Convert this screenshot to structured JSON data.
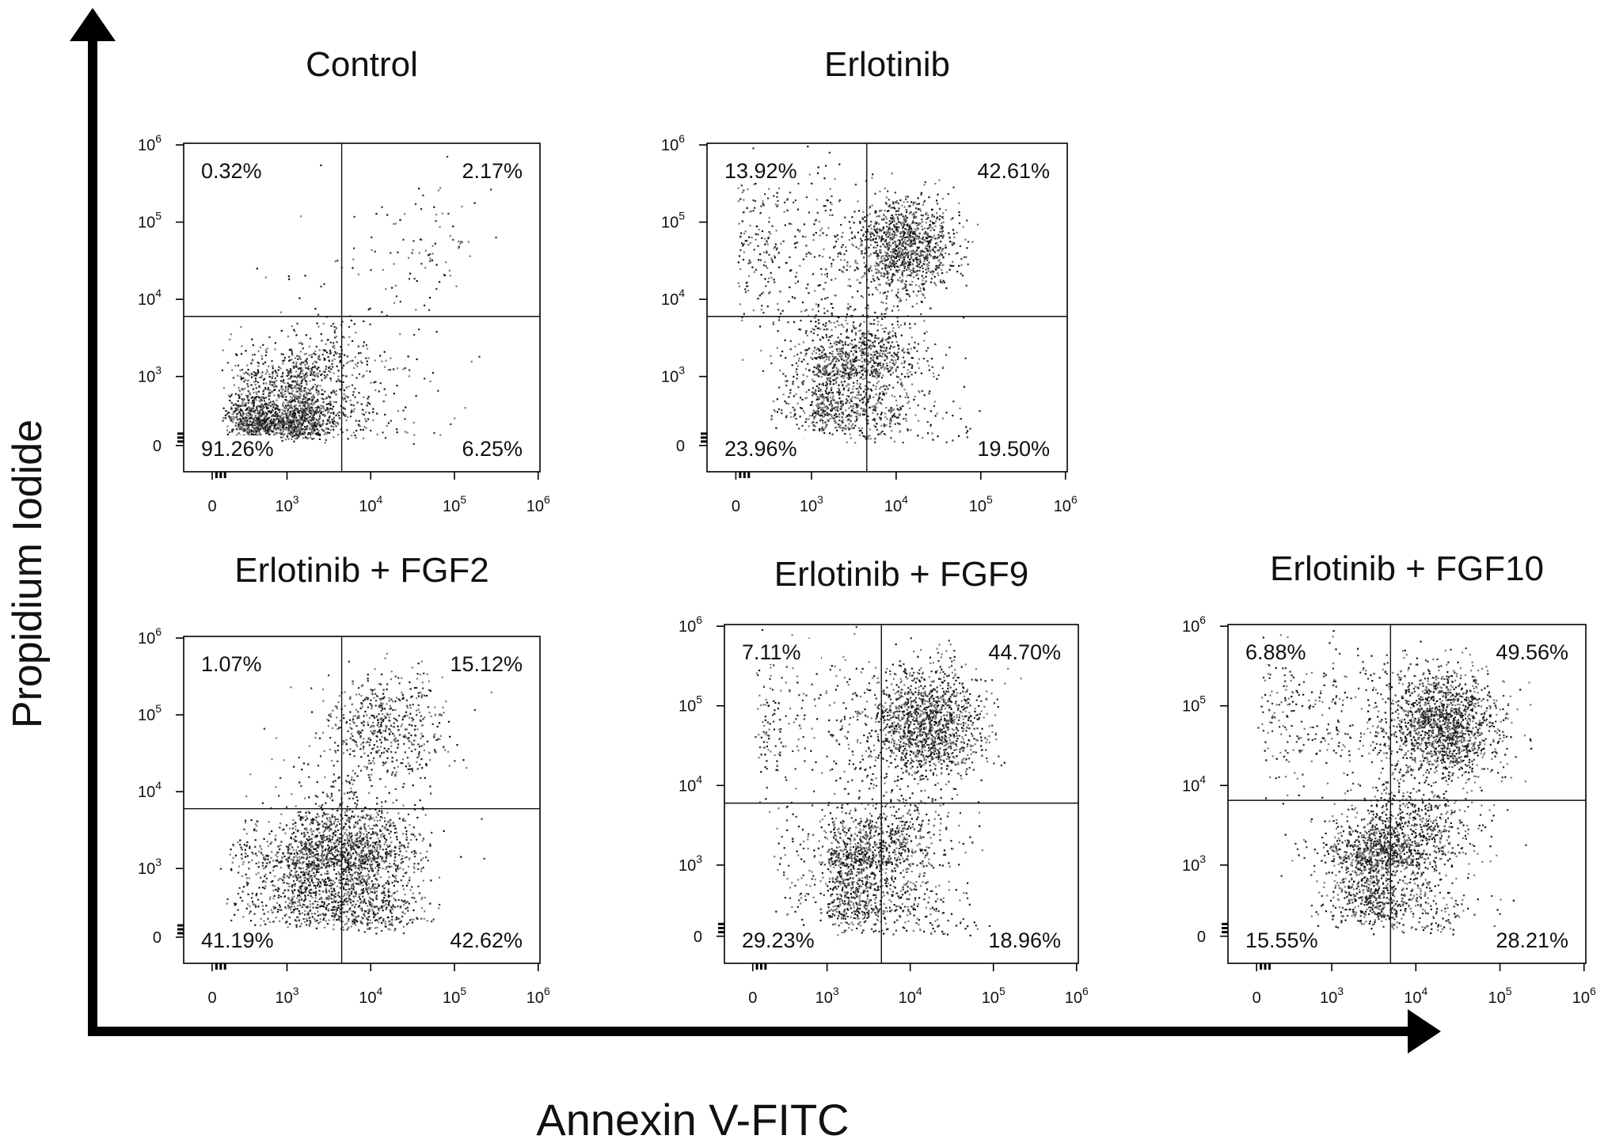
{
  "figure": {
    "ylabel": "Propidium Iodide",
    "xlabel": "Annexin V-FITC"
  },
  "chart_data": [
    {
      "type": "scatter",
      "title": "Control",
      "x_scale": "biexponential-log",
      "y_scale": "biexponential-log",
      "x_ticks": [
        "0",
        "10^3",
        "10^4",
        "10^5",
        "10^6"
      ],
      "y_ticks": [
        "0",
        "10^3",
        "10^4",
        "10^5",
        "10^6"
      ],
      "gate": {
        "x": 4500,
        "y": 6000
      },
      "quadrants": {
        "upper_left": "0.32%",
        "upper_right": "2.17%",
        "lower_left": "91.26%",
        "lower_right": "6.25%"
      },
      "populations": [
        {
          "x": 900,
          "y": 450,
          "count": 1500,
          "spread": 0.22
        },
        {
          "x": 2500,
          "y": 900,
          "count": 500,
          "spread": 0.3
        },
        {
          "x": 15000,
          "y": 700,
          "count": 90,
          "spread": 0.45
        },
        {
          "x": 40000,
          "y": 60000,
          "count": 80,
          "spread": 0.35
        },
        {
          "x": 3000,
          "y": 20000,
          "count": 25,
          "spread": 0.4
        }
      ],
      "grid": false,
      "legend": "none"
    },
    {
      "type": "scatter",
      "title": "Erlotinib",
      "x_scale": "biexponential-log",
      "y_scale": "biexponential-log",
      "x_ticks": [
        "0",
        "10^3",
        "10^4",
        "10^5",
        "10^6"
      ],
      "y_ticks": [
        "0",
        "10^3",
        "10^4",
        "10^5",
        "10^6"
      ],
      "gate": {
        "x": 4500,
        "y": 6000
      },
      "quadrants": {
        "upper_left": "13.92%",
        "upper_right": "42.61%",
        "lower_left": "23.96%",
        "lower_right": "19.50%"
      },
      "populations": [
        {
          "x": 12000,
          "y": 50000,
          "count": 1100,
          "spread": 0.25
        },
        {
          "x": 600,
          "y": 60000,
          "count": 350,
          "spread": 0.45
        },
        {
          "x": 3500,
          "y": 1500,
          "count": 1000,
          "spread": 0.3
        },
        {
          "x": 1500,
          "y": 700,
          "count": 350,
          "spread": 0.2
        },
        {
          "x": 8000,
          "y": 400,
          "count": 150,
          "spread": 0.35
        }
      ],
      "grid": false,
      "legend": "none"
    },
    {
      "type": "scatter",
      "title": "Erlotinib + FGF2",
      "x_scale": "biexponential-log",
      "y_scale": "biexponential-log",
      "x_ticks": [
        "0",
        "10^3",
        "10^4",
        "10^5",
        "10^6"
      ],
      "y_ticks": [
        "0",
        "10^3",
        "10^4",
        "10^5",
        "10^6"
      ],
      "gate": {
        "x": 4500,
        "y": 6000
      },
      "quadrants": {
        "upper_left": "1.07%",
        "upper_right": "15.12%",
        "lower_left": "41.19%",
        "lower_right": "42.62%"
      },
      "populations": [
        {
          "x": 1500,
          "y": 1000,
          "count": 900,
          "spread": 0.28
        },
        {
          "x": 7000,
          "y": 1500,
          "count": 1200,
          "spread": 0.3
        },
        {
          "x": 15000,
          "y": 80000,
          "count": 500,
          "spread": 0.3
        },
        {
          "x": 10000,
          "y": 400,
          "count": 200,
          "spread": 0.25
        },
        {
          "x": 5000,
          "y": 15000,
          "count": 120,
          "spread": 0.4
        }
      ],
      "grid": false,
      "legend": "none"
    },
    {
      "type": "scatter",
      "title": "Erlotinib + FGF9",
      "x_scale": "biexponential-log",
      "y_scale": "biexponential-log",
      "x_ticks": [
        "0",
        "10^3",
        "10^4",
        "10^5",
        "10^6"
      ],
      "y_ticks": [
        "0",
        "10^3",
        "10^4",
        "10^5",
        "10^6"
      ],
      "gate": {
        "x": 4500,
        "y": 6000
      },
      "quadrants": {
        "upper_left": "7.11%",
        "upper_right": "44.70%",
        "lower_left": "29.23%",
        "lower_right": "18.96%"
      },
      "populations": [
        {
          "x": 15000,
          "y": 60000,
          "count": 1400,
          "spread": 0.3
        },
        {
          "x": 700,
          "y": 70000,
          "count": 250,
          "spread": 0.45
        },
        {
          "x": 2000,
          "y": 900,
          "count": 800,
          "spread": 0.25
        },
        {
          "x": 6000,
          "y": 2000,
          "count": 500,
          "spread": 0.3
        },
        {
          "x": 8000,
          "y": 400,
          "count": 200,
          "spread": 0.4
        }
      ],
      "grid": false,
      "legend": "none"
    },
    {
      "type": "scatter",
      "title": "Erlotinib + FGF10",
      "x_scale": "biexponential-log",
      "y_scale": "biexponential-log",
      "x_ticks": [
        "0",
        "10^3",
        "10^4",
        "10^5",
        "10^6"
      ],
      "y_ticks": [
        "0",
        "10^3",
        "10^4",
        "10^5",
        "10^6"
      ],
      "gate": {
        "x": 5000,
        "y": 6500
      },
      "quadrants": {
        "upper_left": "6.88%",
        "upper_right": "49.56%",
        "lower_left": "15.55%",
        "lower_right": "28.21%"
      },
      "populations": [
        {
          "x": 20000,
          "y": 60000,
          "count": 1500,
          "spread": 0.28
        },
        {
          "x": 800,
          "y": 80000,
          "count": 300,
          "spread": 0.4
        },
        {
          "x": 3000,
          "y": 1000,
          "count": 1000,
          "spread": 0.25
        },
        {
          "x": 9000,
          "y": 2500,
          "count": 700,
          "spread": 0.3
        },
        {
          "x": 12000,
          "y": 400,
          "count": 150,
          "spread": 0.35
        }
      ],
      "grid": false,
      "legend": "none"
    }
  ]
}
